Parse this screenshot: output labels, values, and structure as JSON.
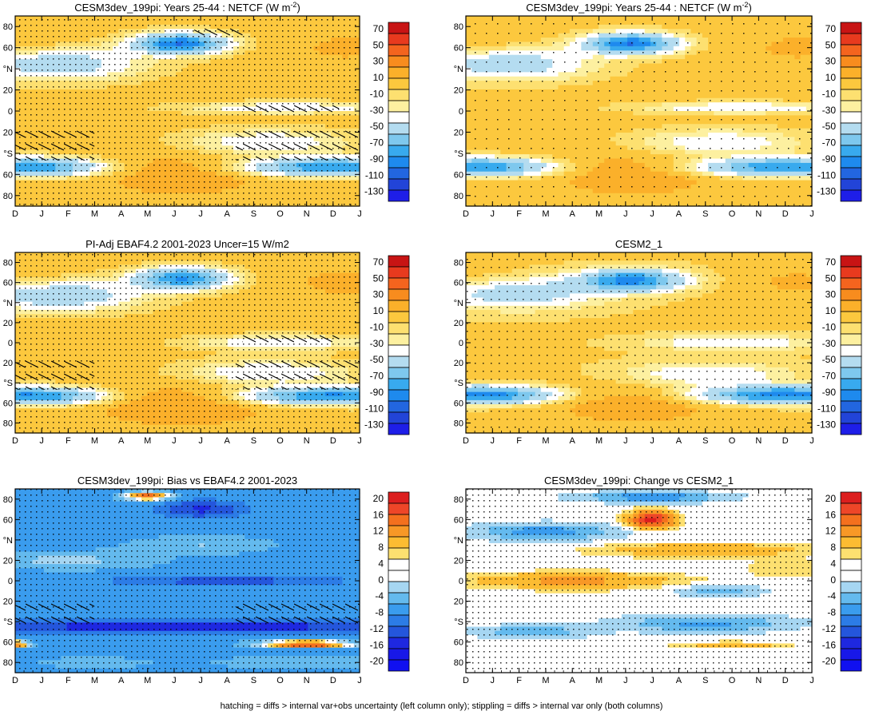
{
  "figure": {
    "footnote": "hatching = diffs > internal var+obs uncertainty (left column only); stippling = diffs > internal var only (both columns)"
  },
  "chart_data": [
    {
      "type": "heatmap",
      "title": "CESM3dev_199pi: Years 25-44 : NETCF (W m",
      "title_superscript": "-2",
      "title_suffix": ")",
      "field": "climatology_a",
      "hatching": true,
      "stippling": "dense",
      "x_ticks": [
        "D",
        "J",
        "F",
        "M",
        "A",
        "M",
        "J",
        "J",
        "A",
        "S",
        "O",
        "N",
        "D",
        "J"
      ],
      "y_ticks": [
        "80",
        "60",
        "°N",
        "20",
        "0",
        "20",
        "°S",
        "60",
        "80"
      ],
      "colorbar_labels": [
        "70",
        "50",
        "30",
        "10",
        "-10",
        "-30",
        "-50",
        "-70",
        "-90",
        "-110",
        "-130"
      ]
    },
    {
      "type": "heatmap",
      "title": "CESM3dev_199pi: Years 25-44 : NETCF (W m",
      "title_superscript": "-2",
      "title_suffix": ")",
      "field": "climatology_a",
      "hatching": false,
      "stippling": "sparse",
      "x_ticks": [
        "D",
        "J",
        "F",
        "M",
        "A",
        "M",
        "J",
        "J",
        "A",
        "S",
        "O",
        "N",
        "D",
        "J"
      ],
      "y_ticks": [
        "80",
        "60",
        "°N",
        "20",
        "0",
        "20",
        "°S",
        "60",
        "80"
      ],
      "colorbar_labels": [
        "70",
        "50",
        "30",
        "10",
        "-10",
        "-30",
        "-50",
        "-70",
        "-90",
        "-110",
        "-130"
      ]
    },
    {
      "type": "heatmap",
      "title": "PI-Adj EBAF4.2 2001-2023 Uncer=15 W/m2",
      "field": "climatology_b",
      "hatching": true,
      "stippling": "dense",
      "x_ticks": [
        "D",
        "J",
        "F",
        "M",
        "A",
        "M",
        "J",
        "J",
        "A",
        "S",
        "O",
        "N",
        "D",
        "J"
      ],
      "y_ticks": [
        "80",
        "60",
        "°N",
        "20",
        "0",
        "20",
        "°S",
        "60",
        "80"
      ],
      "colorbar_labels": [
        "70",
        "50",
        "30",
        "10",
        "-10",
        "-30",
        "-50",
        "-70",
        "-90",
        "-110",
        "-130"
      ]
    },
    {
      "type": "heatmap",
      "title": "CESM2_1",
      "field": "climatology_c",
      "hatching": false,
      "stippling": "medium",
      "x_ticks": [
        "D",
        "J",
        "F",
        "M",
        "A",
        "M",
        "J",
        "J",
        "A",
        "S",
        "O",
        "N",
        "D",
        "J"
      ],
      "y_ticks": [
        "80",
        "60",
        "°N",
        "20",
        "0",
        "20",
        "°S",
        "60",
        "80"
      ],
      "colorbar_labels": [
        "70",
        "50",
        "30",
        "10",
        "-10",
        "-30",
        "-50",
        "-70",
        "-90",
        "-110",
        "-130"
      ]
    },
    {
      "type": "heatmap",
      "title": "CESM3dev_199pi: Bias vs EBAF4.2 2001-2023",
      "field": "bias",
      "hatching": true,
      "stippling": "dense",
      "x_ticks": [
        "D",
        "J",
        "F",
        "M",
        "A",
        "M",
        "J",
        "J",
        "A",
        "S",
        "O",
        "N",
        "D",
        "J"
      ],
      "y_ticks": [
        "80",
        "60",
        "°N",
        "20",
        "0",
        "20",
        "°S",
        "60",
        "80"
      ],
      "colorbar_labels": [
        "20",
        "16",
        "12",
        "8",
        "4",
        "0",
        "-4",
        "-8",
        "-12",
        "-16",
        "-20"
      ]
    },
    {
      "type": "heatmap",
      "title": "CESM3dev_199pi: Change vs CESM2_1",
      "field": "change",
      "hatching": false,
      "stippling": "dense",
      "x_ticks": [
        "D",
        "J",
        "F",
        "M",
        "A",
        "M",
        "J",
        "J",
        "A",
        "S",
        "O",
        "N",
        "D",
        "J"
      ],
      "y_ticks": [
        "80",
        "60",
        "°N",
        "20",
        "0",
        "20",
        "°S",
        "60",
        "80"
      ],
      "colorbar_labels": [
        "20",
        "16",
        "12",
        "8",
        "4",
        "0",
        "-4",
        "-8",
        "-12",
        "-16",
        "-20"
      ]
    }
  ]
}
